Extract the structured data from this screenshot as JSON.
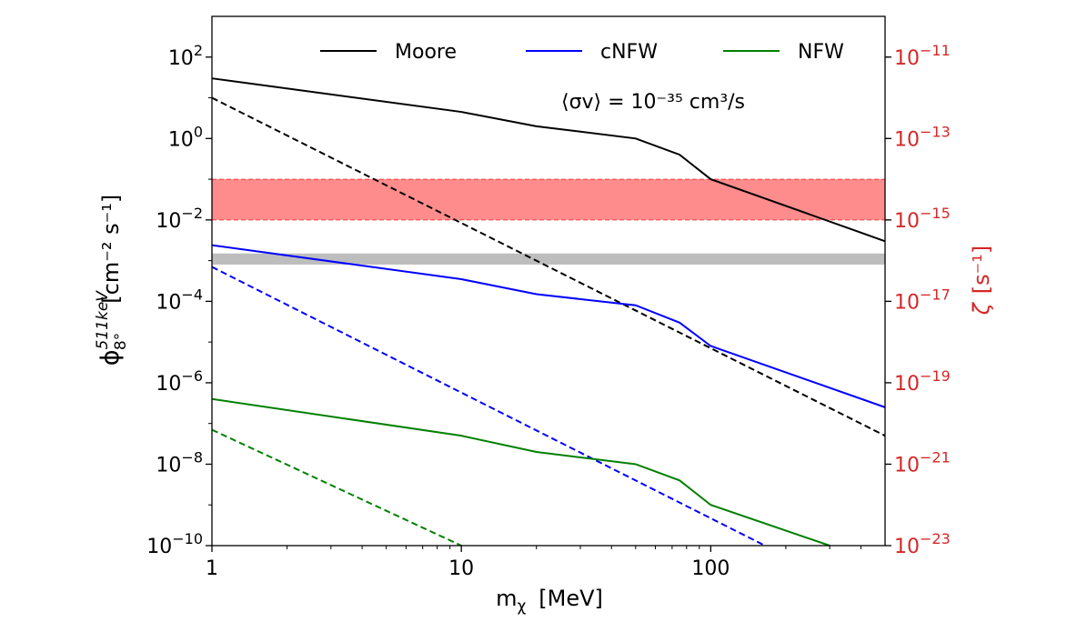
{
  "chart_data": {
    "type": "line",
    "x_scale": "log",
    "y_scale": "log",
    "xlim": [
      1,
      500
    ],
    "ylim": [
      1e-10,
      1000.0
    ],
    "y2lim": [
      1e-23,
      1e-10
    ],
    "xlabel": "m",
    "xlabel_sub": "χ",
    "xlabel_unit": "[MeV]",
    "ylabel": "ϕ",
    "ylabel_sup": "511keV",
    "ylabel_sub": "8°",
    "ylabel_unit": "[cm⁻² s⁻¹]",
    "y2label": "ζ",
    "y2label_unit": "[s⁻¹]",
    "annotation": "⟨σv⟩ = 10⁻³⁵ cm³/s",
    "x_ticks": [
      {
        "value": 1,
        "label": "1"
      },
      {
        "value": 10,
        "label": "10"
      },
      {
        "value": 100,
        "label": "100"
      }
    ],
    "y_ticks": [
      {
        "value": 100.0,
        "base": "10",
        "exp": "2"
      },
      {
        "value": 1.0,
        "base": "10",
        "exp": "0"
      },
      {
        "value": 0.01,
        "base": "10",
        "exp": "−2"
      },
      {
        "value": 0.0001,
        "base": "10",
        "exp": "−4"
      },
      {
        "value": 1e-06,
        "base": "10",
        "exp": "−6"
      },
      {
        "value": 1e-08,
        "base": "10",
        "exp": "−8"
      },
      {
        "value": 1e-10,
        "base": "10",
        "exp": "−10"
      }
    ],
    "y2_ticks": [
      {
        "value": 1e-11,
        "base": "10",
        "exp": "−11"
      },
      {
        "value": 1e-13,
        "base": "10",
        "exp": "−13"
      },
      {
        "value": 1e-15,
        "base": "10",
        "exp": "−15"
      },
      {
        "value": 1e-17,
        "base": "10",
        "exp": "−17"
      },
      {
        "value": 1e-19,
        "base": "10",
        "exp": "−19"
      },
      {
        "value": 1e-21,
        "base": "10",
        "exp": "−21"
      },
      {
        "value": 1e-23,
        "base": "10",
        "exp": "−23"
      }
    ],
    "legend_position": "top",
    "legend": [
      {
        "name": "Moore",
        "color": "#000000"
      },
      {
        "name": "cNFW",
        "color": "#0000ff"
      },
      {
        "name": "NFW",
        "color": "#008000"
      }
    ],
    "series": [
      {
        "name": "Moore",
        "color": "#000000",
        "style": "solid",
        "x": [
          1,
          10,
          20,
          50,
          75,
          100,
          500
        ],
        "y": [
          30,
          4.5,
          2,
          1,
          0.4,
          0.1,
          0.003
        ]
      },
      {
        "name": "Moore",
        "color": "#000000",
        "style": "dashed",
        "x": [
          1,
          500
        ],
        "y": [
          10,
          5e-08
        ]
      },
      {
        "name": "cNFW",
        "color": "#0000ff",
        "style": "solid",
        "x": [
          1,
          10,
          20,
          50,
          75,
          100,
          500
        ],
        "y": [
          0.0024,
          0.00035,
          0.00015,
          8e-05,
          3e-05,
          8e-06,
          2.5e-07
        ]
      },
      {
        "name": "cNFW",
        "color": "#0000ff",
        "style": "dashed",
        "x": [
          1,
          165
        ],
        "y": [
          0.0007,
          1e-10
        ]
      },
      {
        "name": "NFW",
        "color": "#008000",
        "style": "solid",
        "x": [
          1,
          10,
          20,
          50,
          75,
          100,
          300
        ],
        "y": [
          4e-07,
          5e-08,
          2e-08,
          1e-08,
          4e-09,
          1e-09,
          1e-10
        ]
      },
      {
        "name": "NFW",
        "color": "#008000",
        "style": "dashed",
        "x": [
          1,
          10
        ],
        "y": [
          7e-08,
          1e-10
        ]
      }
    ],
    "bands": [
      {
        "color": "#ff0000",
        "opacity": 0.45,
        "ymin": 0.01,
        "ymax": 0.1,
        "edge": "dashed"
      },
      {
        "color": "#999999",
        "opacity": 0.65,
        "ymin": 0.0008,
        "ymax": 0.0015,
        "edge": "none"
      }
    ]
  }
}
